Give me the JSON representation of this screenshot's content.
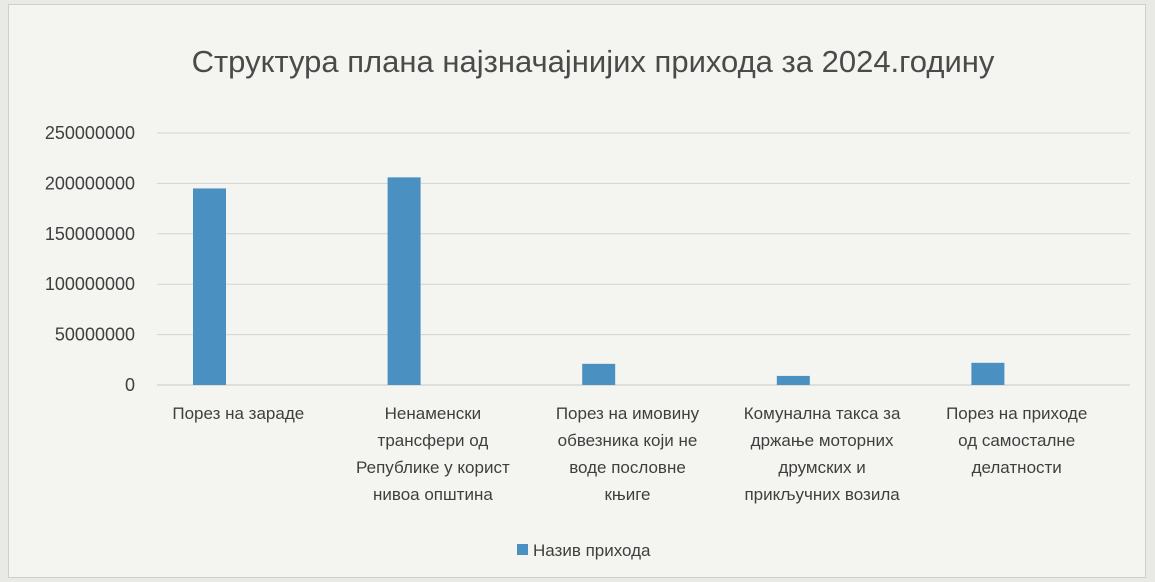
{
  "chart_data": {
    "type": "bar",
    "title": "Структура плана најзначајнијих прихода за 2024.годину",
    "categories": [
      [
        "Порез на зараде"
      ],
      [
        "Ненаменски",
        "трансфери од",
        "Републике у корист",
        "нивоа општина"
      ],
      [
        "Порез на имовину",
        "обвезника који не",
        "воде пословне",
        "књиге"
      ],
      [
        "Комунална такса за",
        "држање моторних",
        "друмских и",
        "прикључних возила"
      ],
      [
        "Порез на приходе",
        "од самосталне",
        "делатности"
      ]
    ],
    "series": [
      {
        "name": "Назив прихода",
        "color": "#4a90c0",
        "values": [
          195000000,
          206000000,
          21000000,
          9000000,
          22000000
        ]
      }
    ],
    "ylim": [
      0,
      250000000
    ],
    "yticks": [
      0,
      50000000,
      100000000,
      150000000,
      200000000,
      250000000
    ],
    "grid": true,
    "legend": "bottom"
  }
}
